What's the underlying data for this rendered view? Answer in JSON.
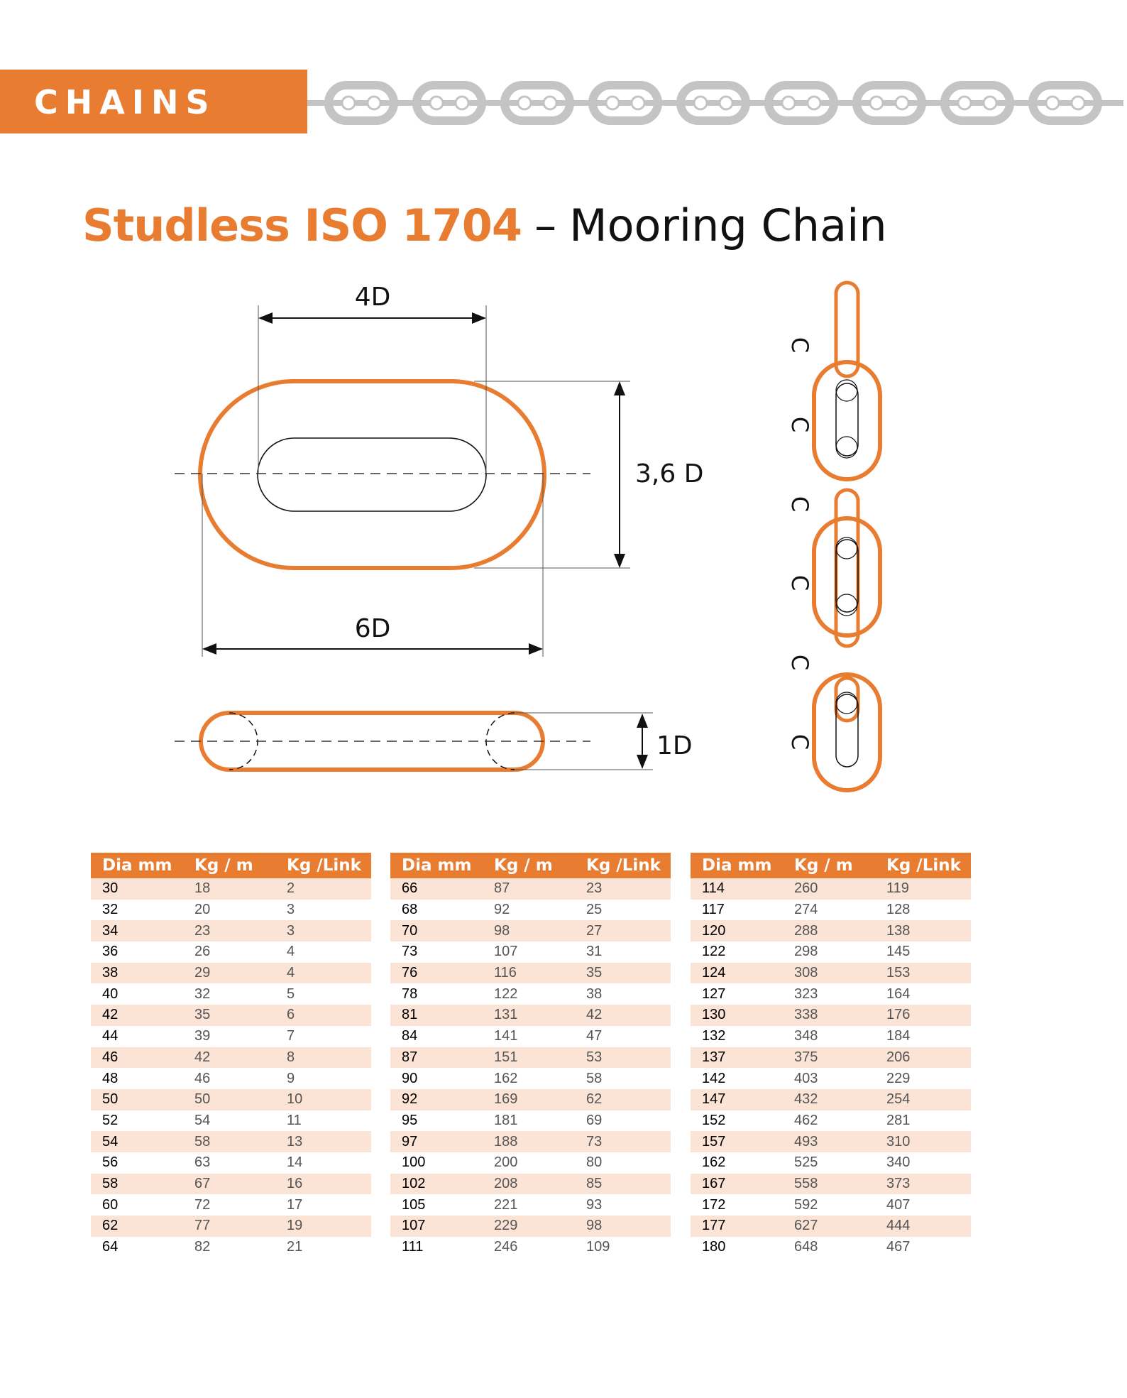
{
  "header": {
    "label": "CHAINS"
  },
  "title": {
    "bold": "Studless ISO 1704",
    "separator": "–",
    "rest": "Mooring Chain"
  },
  "diagram": {
    "width_label": "4D",
    "height_label": "3,6 D",
    "length_label": "6D",
    "thickness_label": "1D",
    "side_labels": [
      "C",
      "C",
      "C",
      "C",
      "C",
      "C"
    ]
  },
  "colors": {
    "accent": "#e87c31",
    "row_alt": "#fbe3d6",
    "chain_gray": "#c4c4c4"
  },
  "table": {
    "headers": [
      "Dia mm",
      "Kg / m",
      "Kg /Link"
    ],
    "columns": [
      [
        [
          "30",
          "18",
          "2"
        ],
        [
          "32",
          "20",
          "3"
        ],
        [
          "34",
          "23",
          "3"
        ],
        [
          "36",
          "26",
          "4"
        ],
        [
          "38",
          "29",
          "4"
        ],
        [
          "40",
          "32",
          "5"
        ],
        [
          "42",
          "35",
          "6"
        ],
        [
          "44",
          "39",
          "7"
        ],
        [
          "46",
          "42",
          "8"
        ],
        [
          "48",
          "46",
          "9"
        ],
        [
          "50",
          "50",
          "10"
        ],
        [
          "52",
          "54",
          "11"
        ],
        [
          "54",
          "58",
          "13"
        ],
        [
          "56",
          "63",
          "14"
        ],
        [
          "58",
          "67",
          "16"
        ],
        [
          "60",
          "72",
          "17"
        ],
        [
          "62",
          "77",
          "19"
        ],
        [
          "64",
          "82",
          "21"
        ]
      ],
      [
        [
          "66",
          "87",
          "23"
        ],
        [
          "68",
          "92",
          "25"
        ],
        [
          "70",
          "98",
          "27"
        ],
        [
          "73",
          "107",
          "31"
        ],
        [
          "76",
          "116",
          "35"
        ],
        [
          "78",
          "122",
          "38"
        ],
        [
          "81",
          "131",
          "42"
        ],
        [
          "84",
          "141",
          "47"
        ],
        [
          "87",
          "151",
          "53"
        ],
        [
          "90",
          "162",
          "58"
        ],
        [
          "92",
          "169",
          "62"
        ],
        [
          "95",
          "181",
          "69"
        ],
        [
          "97",
          "188",
          "73"
        ],
        [
          "100",
          "200",
          "80"
        ],
        [
          "102",
          "208",
          "85"
        ],
        [
          "105",
          "221",
          "93"
        ],
        [
          "107",
          "229",
          "98"
        ],
        [
          "111",
          "246",
          "109"
        ]
      ],
      [
        [
          "114",
          "260",
          "119"
        ],
        [
          "117",
          "274",
          "128"
        ],
        [
          "120",
          "288",
          "138"
        ],
        [
          "122",
          "298",
          "145"
        ],
        [
          "124",
          "308",
          "153"
        ],
        [
          "127",
          "323",
          "164"
        ],
        [
          "130",
          "338",
          "176"
        ],
        [
          "132",
          "348",
          "184"
        ],
        [
          "137",
          "375",
          "206"
        ],
        [
          "142",
          "403",
          "229"
        ],
        [
          "147",
          "432",
          "254"
        ],
        [
          "152",
          "462",
          "281"
        ],
        [
          "157",
          "493",
          "310"
        ],
        [
          "162",
          "525",
          "340"
        ],
        [
          "167",
          "558",
          "373"
        ],
        [
          "172",
          "592",
          "407"
        ],
        [
          "177",
          "627",
          "444"
        ],
        [
          "180",
          "648",
          "467"
        ]
      ]
    ]
  }
}
